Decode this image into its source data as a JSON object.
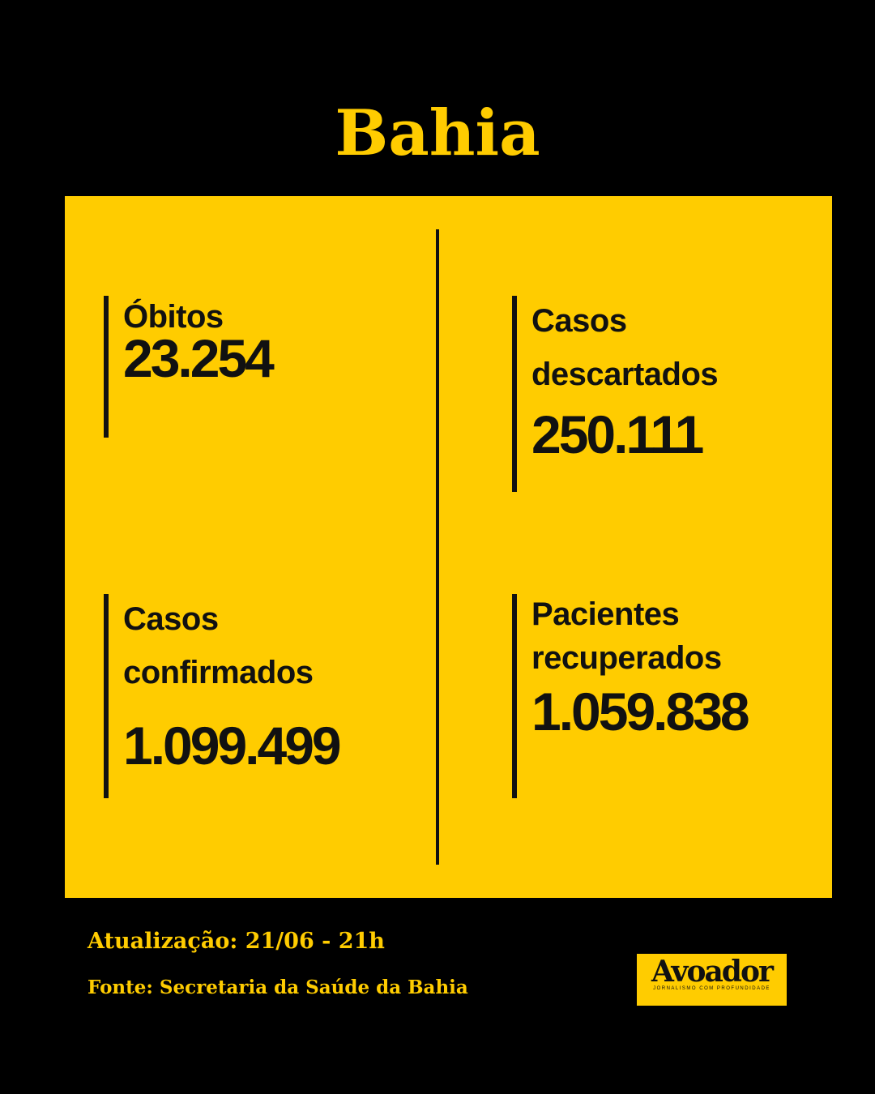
{
  "header": {
    "title": "Bahia"
  },
  "stats": [
    {
      "label": "Óbitos",
      "value": "23.254"
    },
    {
      "label": "Casos descartados",
      "value": "250.111"
    },
    {
      "label": "Casos confirmados",
      "value": "1.099.499"
    },
    {
      "label": "Pacientes recuperados",
      "value": "1.059.838"
    }
  ],
  "footer": {
    "update": "Atualização: 21/06 - 21h",
    "source": "Fonte: Secretaria da Saúde da Bahia"
  },
  "logo": {
    "name": "Avoador",
    "tagline": "JORNALISMO COM PROFUNDIDADE"
  }
}
